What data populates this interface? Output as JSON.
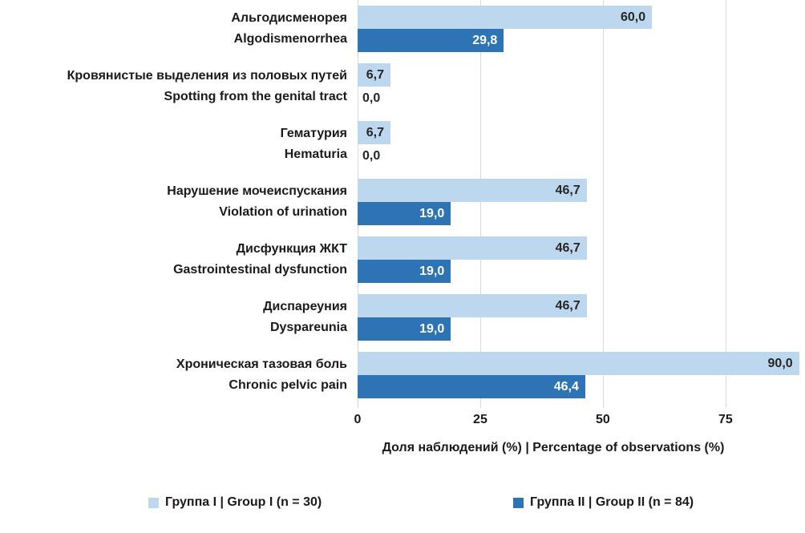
{
  "chart_data": {
    "type": "bar",
    "orientation": "horizontal",
    "title": "",
    "xlabel": "Доля наблюдений (%) | Percentage of observations (%)",
    "ylabel": "",
    "xticks": [
      0,
      25,
      50,
      75
    ],
    "xlim": [
      0,
      91.2
    ],
    "grid": true,
    "legend_position": "bottom",
    "categories": [
      {
        "ru": "Альгодисменорея",
        "en": "Algodismenorrhea"
      },
      {
        "ru": "Кровянистые выделения из половых путей",
        "en": "Spotting from the genital tract"
      },
      {
        "ru": "Гематурия",
        "en": "Hematuria"
      },
      {
        "ru": "Нарушение мочеиспускания",
        "en": "Violation of urination"
      },
      {
        "ru": "Дисфункция ЖКТ",
        "en": "Gastrointestinal dysfunction"
      },
      {
        "ru": "Диспареуния",
        "en": "Dyspareunia"
      },
      {
        "ru": "Хроническая тазовая боль",
        "en": "Chronic pelvic pain"
      }
    ],
    "series": [
      {
        "name": "Группа I | Group I (n = 30)",
        "color": "#BDD7EE",
        "values": [
          60.0,
          6.7,
          6.7,
          46.7,
          46.7,
          46.7,
          90.0
        ],
        "value_labels": [
          "60,0",
          "6,7",
          "6,7",
          "46,7",
          "46,7",
          "46,7",
          "90,0"
        ],
        "label_color": "#262626"
      },
      {
        "name": "Группа II | Group II (n = 84)",
        "color": "#2E74B5",
        "values": [
          29.8,
          0.0,
          0.0,
          19.0,
          19.0,
          19.0,
          46.4
        ],
        "value_labels": [
          "29,8",
          "0,0",
          "0,0",
          "19,0",
          "19,0",
          "19,0",
          "46,4"
        ],
        "label_color": "#FFFFFF"
      }
    ]
  },
  "legend": {
    "items": [
      {
        "label": "Группа I | Group I (n = 30)",
        "color": "#BDD7EE"
      },
      {
        "label": "Группа II | Group II (n = 84)",
        "color": "#2E74B5"
      }
    ]
  },
  "colors": {
    "group1": "#BDD7EE",
    "group2": "#2E74B5",
    "gridline": "#D9D9D9",
    "text": "#1A1A1A",
    "value_on_dark": "#FFFFFF"
  }
}
